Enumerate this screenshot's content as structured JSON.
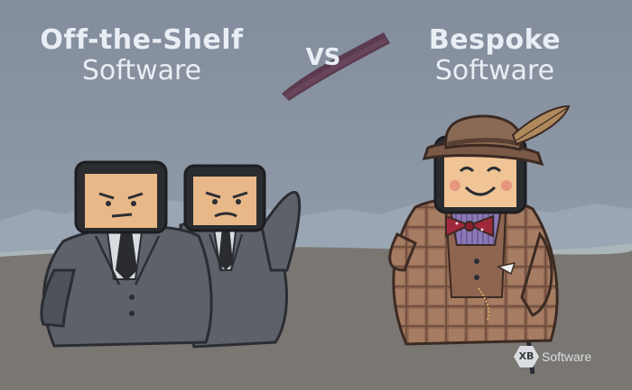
{
  "left_title": {
    "line1": "Off-the-Shelf",
    "line2": "Software"
  },
  "vs_label": "VS",
  "right_title": {
    "line1": "Bespoke",
    "line2": "Software"
  },
  "logo": {
    "mark": "XB",
    "word": "Software"
  },
  "colors": {
    "sky": "#8792a2",
    "ground": "#7a7672",
    "mountains": "#9aa6b3",
    "brush_stroke": "#5a3a4e",
    "suit_gray": "#5d6169",
    "plaid_suit": "#a67c62",
    "title_text": "#e9eef5"
  }
}
